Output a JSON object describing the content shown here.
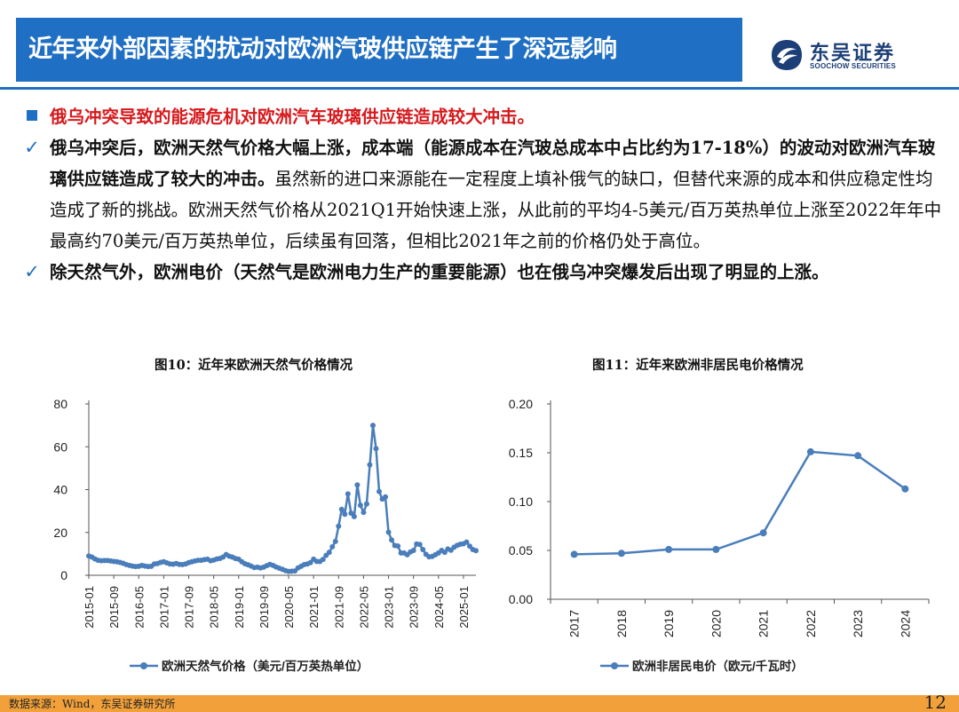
{
  "header": {
    "title": "近年来外部因素的扰动对欧洲汽玻供应链产生了深远影响",
    "logo_name": "东吴证券",
    "logo_en": "SOOCHOW SECURITIES"
  },
  "bullets": {
    "headline": "俄乌冲突导致的能源危机对欧洲汽车玻璃供应链造成较大冲击。",
    "p1_bold": "俄乌冲突后，欧洲天然气价格大幅上涨，成本端（能源成本在汽玻总成本中占比约为17-18%）的波动对欧洲汽车玻璃供应链造成了较大的冲击。",
    "p1_text": "虽然新的进口来源能在一定程度上填补俄气的缺口，但替代来源的成本和供应稳定性均造成了新的挑战。欧洲天然气价格从2021Q1开始快速上涨，从此前的平均4-5美元/百万英热单位上涨至2022年年中最高约70美元/百万英热单位，后续虽有回落，但相比2021年之前的价格仍处于高位。",
    "p2_bold": "除天然气外，欧洲电价（天然气是欧洲电力生产的重要能源）也在俄乌冲突爆发后出现了明显的上涨。"
  },
  "figures": {
    "left_title": "图10：近年来欧洲天然气价格情况",
    "right_title": "图11：近年来欧洲非居民电价格情况"
  },
  "footer": {
    "source": "数据来源：Wind，东吴证券研究所",
    "page": "12"
  },
  "colors": {
    "brand_blue": "#1f6fc4",
    "series_blue": "#4a7ebb",
    "headline_red": "#d7191c",
    "footer_orange": "#f2a13a"
  },
  "icons": {
    "bullet_square": "square-bullet-icon",
    "check": "check-icon",
    "logo": "soochow-logo-icon"
  },
  "chart_data": [
    {
      "type": "line",
      "xlim": [
        "2015-01",
        "2025-05"
      ],
      "ylim": [
        0,
        80
      ],
      "yticks": [
        0,
        20,
        40,
        60,
        80
      ],
      "xticks": [
        "2015-01",
        "2015-09",
        "2016-05",
        "2017-01",
        "2017-09",
        "2018-05",
        "2019-01",
        "2019-09",
        "2020-05",
        "2021-01",
        "2021-09",
        "2022-05",
        "2023-01",
        "2023-09",
        "2024-05",
        "2025-01"
      ],
      "grid": false,
      "legend": "bottom",
      "series": [
        {
          "name": "欧洲天然气价格（美元/百万英热单位）",
          "points": [
            [
              "2015-01",
              9.0
            ],
            [
              "2015-02",
              8.5
            ],
            [
              "2015-03",
              7.6
            ],
            [
              "2015-04",
              7.0
            ],
            [
              "2015-05",
              6.8
            ],
            [
              "2015-06",
              6.9
            ],
            [
              "2015-07",
              6.9
            ],
            [
              "2015-08",
              6.7
            ],
            [
              "2015-09",
              6.5
            ],
            [
              "2015-10",
              6.3
            ],
            [
              "2015-11",
              6.0
            ],
            [
              "2015-12",
              5.6
            ],
            [
              "2016-01",
              5.0
            ],
            [
              "2016-02",
              4.6
            ],
            [
              "2016-03",
              4.3
            ],
            [
              "2016-04",
              4.1
            ],
            [
              "2016-05",
              4.2
            ],
            [
              "2016-06",
              4.6
            ],
            [
              "2016-07",
              4.3
            ],
            [
              "2016-08",
              4.1
            ],
            [
              "2016-09",
              4.2
            ],
            [
              "2016-10",
              5.3
            ],
            [
              "2016-11",
              5.5
            ],
            [
              "2016-12",
              6.0
            ],
            [
              "2017-01",
              6.3
            ],
            [
              "2017-02",
              5.8
            ],
            [
              "2017-03",
              5.3
            ],
            [
              "2017-04",
              5.2
            ],
            [
              "2017-05",
              5.5
            ],
            [
              "2017-06",
              5.1
            ],
            [
              "2017-07",
              5.0
            ],
            [
              "2017-08",
              5.3
            ],
            [
              "2017-09",
              5.9
            ],
            [
              "2017-10",
              6.3
            ],
            [
              "2017-11",
              6.7
            ],
            [
              "2017-12",
              7.0
            ],
            [
              "2018-01",
              7.0
            ],
            [
              "2018-02",
              7.3
            ],
            [
              "2018-03",
              7.5
            ],
            [
              "2018-04",
              6.8
            ],
            [
              "2018-05",
              7.1
            ],
            [
              "2018-06",
              7.6
            ],
            [
              "2018-07",
              7.9
            ],
            [
              "2018-08",
              8.5
            ],
            [
              "2018-09",
              9.7
            ],
            [
              "2018-10",
              8.9
            ],
            [
              "2018-11",
              8.5
            ],
            [
              "2018-12",
              7.8
            ],
            [
              "2019-01",
              7.5
            ],
            [
              "2019-02",
              6.3
            ],
            [
              "2019-03",
              5.4
            ],
            [
              "2019-04",
              4.9
            ],
            [
              "2019-05",
              4.3
            ],
            [
              "2019-06",
              3.6
            ],
            [
              "2019-07",
              3.8
            ],
            [
              "2019-08",
              3.4
            ],
            [
              "2019-09",
              3.8
            ],
            [
              "2019-10",
              4.5
            ],
            [
              "2019-11",
              5.1
            ],
            [
              "2019-12",
              4.6
            ],
            [
              "2020-01",
              3.9
            ],
            [
              "2020-02",
              3.3
            ],
            [
              "2020-03",
              2.8
            ],
            [
              "2020-04",
              2.2
            ],
            [
              "2020-05",
              1.8
            ],
            [
              "2020-06",
              1.9
            ],
            [
              "2020-07",
              2.0
            ],
            [
              "2020-08",
              3.4
            ],
            [
              "2020-09",
              4.2
            ],
            [
              "2020-10",
              5.0
            ],
            [
              "2020-11",
              5.3
            ],
            [
              "2020-12",
              5.9
            ],
            [
              "2021-01",
              7.5
            ],
            [
              "2021-02",
              6.5
            ],
            [
              "2021-03",
              6.4
            ],
            [
              "2021-04",
              7.4
            ],
            [
              "2021-05",
              9.3
            ],
            [
              "2021-06",
              10.7
            ],
            [
              "2021-07",
              13.3
            ],
            [
              "2021-08",
              15.8
            ],
            [
              "2021-09",
              22.9
            ],
            [
              "2021-10",
              30.8
            ],
            [
              "2021-11",
              28.5
            ],
            [
              "2021-12",
              38.0
            ],
            [
              "2022-01",
              29.0
            ],
            [
              "2022-02",
              27.4
            ],
            [
              "2022-03",
              42.2
            ],
            [
              "2022-04",
              32.7
            ],
            [
              "2022-05",
              29.4
            ],
            [
              "2022-06",
              33.3
            ],
            [
              "2022-07",
              51.6
            ],
            [
              "2022-08",
              70.0
            ],
            [
              "2022-09",
              59.1
            ],
            [
              "2022-10",
              39.1
            ],
            [
              "2022-11",
              35.6
            ],
            [
              "2022-12",
              36.6
            ],
            [
              "2023-01",
              20.1
            ],
            [
              "2023-02",
              16.5
            ],
            [
              "2023-03",
              13.9
            ],
            [
              "2023-04",
              13.7
            ],
            [
              "2023-05",
              10.4
            ],
            [
              "2023-06",
              10.4
            ],
            [
              "2023-07",
              9.6
            ],
            [
              "2023-08",
              10.9
            ],
            [
              "2023-09",
              11.6
            ],
            [
              "2023-10",
              14.6
            ],
            [
              "2023-11",
              14.4
            ],
            [
              "2023-12",
              12.0
            ],
            [
              "2024-01",
              9.8
            ],
            [
              "2024-02",
              8.6
            ],
            [
              "2024-03",
              8.8
            ],
            [
              "2024-04",
              9.6
            ],
            [
              "2024-05",
              10.4
            ],
            [
              "2024-06",
              11.6
            ],
            [
              "2024-07",
              10.7
            ],
            [
              "2024-08",
              12.3
            ],
            [
              "2024-09",
              11.7
            ],
            [
              "2024-10",
              13.1
            ],
            [
              "2024-11",
              14.0
            ],
            [
              "2024-12",
              14.5
            ],
            [
              "2025-01",
              14.7
            ],
            [
              "2025-02",
              15.5
            ],
            [
              "2025-03",
              13.6
            ],
            [
              "2025-04",
              12.0
            ],
            [
              "2025-05",
              11.5
            ]
          ]
        }
      ]
    },
    {
      "type": "line",
      "categories": [
        "2017",
        "2018",
        "2019",
        "2020",
        "2021",
        "2022",
        "2023",
        "2024"
      ],
      "ylim": [
        0,
        0.2
      ],
      "yticks": [
        "0.00",
        "0.05",
        "0.10",
        "0.15",
        "0.20"
      ],
      "grid": false,
      "legend": "bottom",
      "series": [
        {
          "name": "欧洲非居民电价（欧元/千瓦时）",
          "values": [
            0.046,
            0.047,
            0.051,
            0.051,
            0.068,
            0.151,
            0.147,
            0.113
          ]
        }
      ]
    }
  ]
}
